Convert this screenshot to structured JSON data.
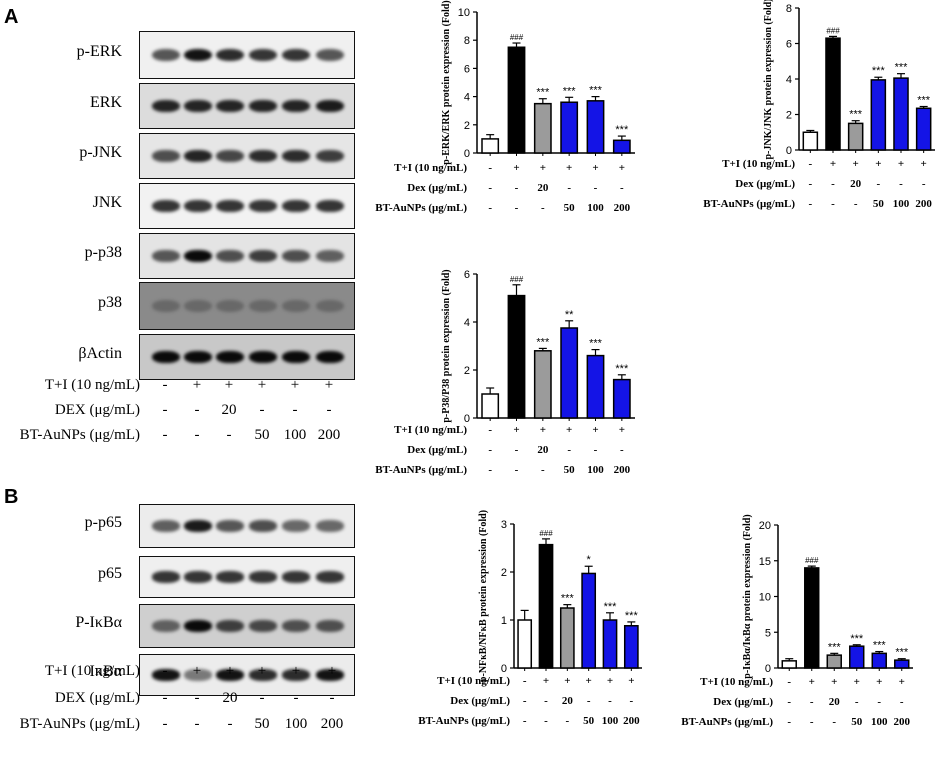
{
  "panels": {
    "a": "A",
    "b": "B"
  },
  "blots_a": [
    {
      "label": "p-ERK",
      "bg": "#f0f0f0",
      "intensity": [
        0.55,
        0.95,
        0.8,
        0.75,
        0.75,
        0.55
      ]
    },
    {
      "label": "ERK",
      "bg": "#dcdcdc",
      "intensity": [
        0.85,
        0.85,
        0.85,
        0.85,
        0.85,
        0.9
      ]
    },
    {
      "label": "p-JNK",
      "bg": "#e6e6e6",
      "intensity": [
        0.6,
        0.85,
        0.65,
        0.8,
        0.8,
        0.7
      ]
    },
    {
      "label": "JNK",
      "bg": "#f2f2f2",
      "intensity": [
        0.75,
        0.75,
        0.75,
        0.75,
        0.75,
        0.75
      ]
    },
    {
      "label": "p-p38",
      "bg": "#e4e4e4",
      "intensity": [
        0.55,
        1.0,
        0.6,
        0.7,
        0.6,
        0.5
      ]
    },
    {
      "label": "p38",
      "bg": "#8a8a8a",
      "intensity": [
        0.45,
        0.45,
        0.45,
        0.45,
        0.45,
        0.45
      ]
    },
    {
      "label": "βActin",
      "bg": "#c8c8c8",
      "intensity": [
        1.0,
        1.0,
        1.0,
        1.0,
        1.0,
        1.0
      ]
    }
  ],
  "blots_b": [
    {
      "label": "p-p65",
      "bg": "#ececec",
      "intensity": [
        0.5,
        0.9,
        0.55,
        0.6,
        0.45,
        0.45
      ]
    },
    {
      "label": "p65",
      "bg": "#efefef",
      "intensity": [
        0.75,
        0.75,
        0.75,
        0.75,
        0.75,
        0.75
      ]
    },
    {
      "label": "P-IκBα",
      "bg": "#cfcfcf",
      "intensity": [
        0.5,
        1.0,
        0.7,
        0.65,
        0.6,
        0.6
      ]
    },
    {
      "label": "IκBα",
      "bg": "#ececec",
      "intensity": [
        0.95,
        0.35,
        0.95,
        0.8,
        0.8,
        0.95
      ]
    }
  ],
  "blot_conditions": {
    "rows": [
      {
        "label": "T+I (10 ng/mL)",
        "values": [
          "-",
          "+",
          "+",
          "+",
          "+",
          "+"
        ]
      },
      {
        "label": "DEX (μg/mL)",
        "values": [
          "-",
          "-",
          "20",
          "-",
          "-",
          "-"
        ]
      },
      {
        "label": "BT-AuNPs (μg/mL)",
        "values": [
          "-",
          "-",
          "-",
          "50",
          "100",
          "200"
        ]
      }
    ]
  },
  "chart_conditions": {
    "rows": [
      {
        "label": "T+I (10 ng/mL)",
        "values": [
          "-",
          "+",
          "+",
          "+",
          "+",
          "+"
        ]
      },
      {
        "label": "Dex (μg/mL)",
        "values": [
          "-",
          "-",
          "20",
          "-",
          "-",
          "-"
        ]
      },
      {
        "label": "BT-AuNPs (μg/mL)",
        "values": [
          "-",
          "-",
          "-",
          "50",
          "100",
          "200"
        ]
      }
    ]
  },
  "colors": {
    "control": "#ffffff",
    "model": "#000000",
    "dex": "#9b9b9b",
    "btaunps": "#1414e6"
  },
  "bar_colors": [
    "#ffffff",
    "#000000",
    "#9b9b9b",
    "#1414e6",
    "#1414e6",
    "#1414e6"
  ],
  "chart_data": [
    {
      "type": "bar",
      "ylabel": "p-ERK/ERK protein expression (Fold)",
      "ylim": [
        0,
        10
      ],
      "yticks": [
        0,
        2,
        4,
        6,
        8,
        10
      ],
      "values": [
        1.0,
        7.5,
        3.5,
        3.6,
        3.7,
        0.9
      ],
      "errors": [
        0.3,
        0.3,
        0.35,
        0.35,
        0.3,
        0.3
      ],
      "annotations": [
        "",
        "###",
        "***",
        "***",
        "***",
        "***"
      ]
    },
    {
      "type": "bar",
      "ylabel": "p-JNK/JNK protein expression (Fold)",
      "ylim": [
        0,
        8
      ],
      "yticks": [
        0,
        2,
        4,
        6,
        8
      ],
      "values": [
        1.0,
        6.3,
        1.5,
        3.95,
        4.05,
        2.35
      ],
      "errors": [
        0.1,
        0.1,
        0.15,
        0.15,
        0.25,
        0.1
      ],
      "annotations": [
        "",
        "###",
        "***",
        "***",
        "***",
        "***"
      ]
    },
    {
      "type": "bar",
      "ylabel": "p-P38/P38 protein expression (Fold)",
      "ylim": [
        0,
        6
      ],
      "yticks": [
        0,
        2,
        4,
        6
      ],
      "values": [
        1.0,
        5.1,
        2.8,
        3.75,
        2.6,
        1.6
      ],
      "errors": [
        0.25,
        0.45,
        0.1,
        0.3,
        0.25,
        0.2
      ],
      "annotations": [
        "",
        "###",
        "***",
        "**",
        "***",
        "***"
      ]
    },
    {
      "type": "bar",
      "ylabel": "p-NFκB/NFκB protein expression (Fold)",
      "ylim": [
        0,
        3
      ],
      "yticks": [
        0,
        1,
        2,
        3
      ],
      "values": [
        1.0,
        2.57,
        1.25,
        1.97,
        1.0,
        0.88
      ],
      "errors": [
        0.2,
        0.12,
        0.07,
        0.15,
        0.15,
        0.08
      ],
      "annotations": [
        "",
        "###",
        "***",
        "*",
        "***",
        "***"
      ]
    },
    {
      "type": "bar",
      "ylabel": "p-IκBα/IκBα protein expression (Fold)",
      "ylim": [
        0,
        20
      ],
      "yticks": [
        0,
        5,
        10,
        15,
        20
      ],
      "values": [
        1.0,
        14.0,
        1.8,
        3.05,
        2.05,
        1.1
      ],
      "errors": [
        0.3,
        0.25,
        0.25,
        0.2,
        0.25,
        0.2
      ],
      "annotations": [
        "",
        "###",
        "***",
        "***",
        "***",
        "***"
      ]
    }
  ]
}
